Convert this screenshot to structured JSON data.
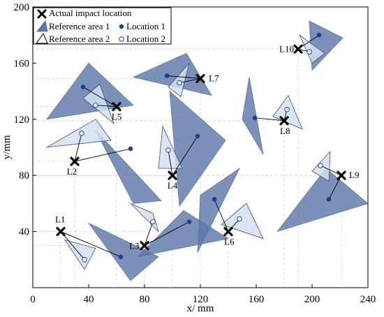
{
  "colors": {
    "reference_area_1": "#5b76a8",
    "reference_area_2": "#d4dff0",
    "location_1": "#1b3f8c",
    "location_2": "#e8eef7",
    "actual_marker": "#000000",
    "frame": "#000000",
    "leader_line": "#000000",
    "guide_line": "#d0d0d0"
  },
  "chart_data": {
    "type": "scatter",
    "xlabel": "x/ mm",
    "ylabel": "y/mm",
    "xlim": [
      0,
      240
    ],
    "ylim": [
      0,
      200
    ],
    "xticks": [
      "0",
      "40",
      "80",
      "120",
      "160",
      "200",
      "240"
    ],
    "yticks": [
      "40",
      "80",
      "120",
      "160",
      "200"
    ],
    "legend": {
      "placement": "top-left",
      "entries": {
        "actual": "Actual impact location",
        "ref1": "Reference area 1",
        "loc1": "Location 1",
        "ref2": "Reference area 2",
        "loc2": "Location 2"
      }
    },
    "points": [
      {
        "label": "L1",
        "actual": [
          20,
          40
        ],
        "loc1": [
          63,
          22
        ],
        "loc2": [
          37,
          20
        ],
        "ref1": [
          [
            40,
            46
          ],
          [
            90,
            22
          ],
          [
            70,
            5
          ]
        ],
        "ref2": [
          [
            23,
            34
          ],
          [
            45,
            28
          ],
          [
            37,
            13
          ]
        ]
      },
      {
        "label": "L2",
        "actual": [
          30,
          90
        ],
        "loc1": [
          70,
          99
        ],
        "loc2": [
          35,
          110
        ],
        "ref1": [
          [
            45,
            112
          ],
          [
            92,
            62
          ],
          [
            72,
            60
          ]
        ],
        "ref2": [
          [
            10,
            100
          ],
          [
            45,
            120
          ],
          [
            56,
            105
          ]
        ]
      },
      {
        "label": "L3",
        "actual": [
          80,
          30
        ],
        "loc1": [
          112,
          47
        ],
        "loc2": [
          86,
          47
        ],
        "ref1": [
          [
            75,
            22
          ],
          [
            108,
            55
          ],
          [
            140,
            35
          ]
        ],
        "ref2": [
          [
            70,
            60
          ],
          [
            86,
            53
          ],
          [
            90,
            40
          ]
        ]
      },
      {
        "label": "L4",
        "actual": [
          100,
          80
        ],
        "loc1": [
          118,
          108
        ],
        "loc2": [
          97,
          98
        ],
        "ref1": [
          [
            98,
            140
          ],
          [
            138,
            105
          ],
          [
            105,
            58
          ]
        ],
        "ref2": [
          [
            93,
            115
          ],
          [
            107,
            85
          ],
          [
            90,
            85
          ]
        ]
      },
      {
        "label": "L5",
        "actual": [
          60,
          129
        ],
        "loc1": [
          36,
          143
        ],
        "loc2": [
          45,
          130
        ],
        "ref1": [
          [
            10,
            120
          ],
          [
            40,
            160
          ],
          [
            72,
            130
          ]
        ],
        "ref2": [
          [
            36,
            135
          ],
          [
            48,
            145
          ],
          [
            58,
            117
          ]
        ]
      },
      {
        "label": "L6",
        "actual": [
          140,
          40
        ],
        "loc1": [
          130,
          63
        ],
        "loc2": [
          148,
          49
        ],
        "ref1": [
          [
            120,
            66
          ],
          [
            148,
            85
          ],
          [
            118,
            25
          ]
        ],
        "ref2": [
          [
            135,
            45
          ],
          [
            153,
            60
          ],
          [
            165,
            35
          ]
        ]
      },
      {
        "label": "L7",
        "actual": [
          120,
          149
        ],
        "loc1": [
          96,
          151
        ],
        "loc2": [
          105,
          146
        ],
        "ref1": [
          [
            72,
            150
          ],
          [
            110,
            167
          ],
          [
            128,
            137
          ]
        ],
        "ref2": [
          [
            97,
            143
          ],
          [
            112,
            160
          ],
          [
            106,
            136
          ]
        ]
      },
      {
        "label": "L8",
        "actual": [
          180,
          119
        ],
        "loc1": [
          159,
          121
        ],
        "loc2": [
          182,
          127
        ],
        "ref1": [
          [
            150,
            120
          ],
          [
            155,
            150
          ],
          [
            165,
            95
          ]
        ],
        "ref2": [
          [
            172,
            122
          ],
          [
            183,
            137
          ],
          [
            193,
            113
          ]
        ]
      },
      {
        "label": "L9",
        "actual": [
          221,
          80
        ],
        "loc1": [
          212,
          63
        ],
        "loc2": [
          206,
          87
        ],
        "ref1": [
          [
            175,
            40
          ],
          [
            210,
            85
          ],
          [
            240,
            60
          ]
        ],
        "ref2": [
          [
            200,
            83
          ],
          [
            213,
            97
          ],
          [
            212,
            76
          ]
        ]
      },
      {
        "label": "L10",
        "actual": [
          190,
          170
        ],
        "loc1": [
          205,
          180
        ],
        "loc2": [
          198,
          168
        ],
        "ref1": [
          [
            198,
            190
          ],
          [
            222,
            178
          ],
          [
            200,
            155
          ]
        ],
        "ref2": [
          [
            191,
            180
          ],
          [
            200,
            160
          ],
          [
            209,
            167
          ]
        ]
      }
    ]
  }
}
